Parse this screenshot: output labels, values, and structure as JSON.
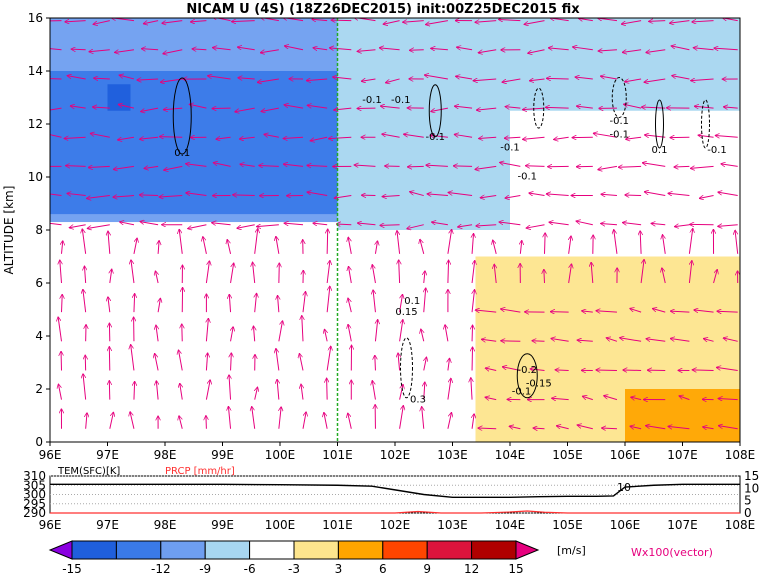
{
  "title": "NICAM U (4S) (18Z26DEC2015) init:00Z25DEC2015 fix",
  "main_panel": {
    "ylabel": "ALTITUDE [km]",
    "ylim": [
      0,
      16
    ],
    "yticks": [
      "0",
      "2",
      "4",
      "6",
      "8",
      "10",
      "12",
      "14",
      "16"
    ],
    "xlim": [
      96,
      108
    ],
    "xticks": [
      "96E",
      "97E",
      "98E",
      "99E",
      "100E",
      "101E",
      "102E",
      "103E",
      "104E",
      "105E",
      "106E",
      "107E",
      "108E"
    ],
    "reference_line_lon": 101,
    "reference_line_color": "#22aa22"
  },
  "contour_labels": [
    {
      "text": "0.1",
      "lon": 98.3,
      "alt": 10.8
    },
    {
      "text": "-0.1",
      "lon": 101.6,
      "alt": 12.8
    },
    {
      "text": "-0.1",
      "lon": 102.1,
      "alt": 12.8
    },
    {
      "text": "-0.1",
      "lon": 102.7,
      "alt": 11.4
    },
    {
      "text": "-0.1",
      "lon": 104.0,
      "alt": 11.0
    },
    {
      "text": "-0.1",
      "lon": 104.3,
      "alt": 9.9
    },
    {
      "text": "-0.1",
      "lon": 105.9,
      "alt": 12.0
    },
    {
      "text": "-0.1",
      "lon": 105.9,
      "alt": 11.5
    },
    {
      "text": "0.1",
      "lon": 106.6,
      "alt": 10.9
    },
    {
      "text": "-0.1",
      "lon": 107.6,
      "alt": 10.9
    },
    {
      "text": "0.1",
      "lon": 102.3,
      "alt": 5.2
    },
    {
      "text": "0.15",
      "lon": 102.2,
      "alt": 4.8
    },
    {
      "text": "0.3",
      "lon": 102.4,
      "alt": 1.5
    },
    {
      "text": "-0.2",
      "lon": 104.3,
      "alt": 2.6
    },
    {
      "text": "-0.15",
      "lon": 104.5,
      "alt": 2.1
    },
    {
      "text": "-0.1",
      "lon": 104.2,
      "alt": 1.8
    }
  ],
  "colorbar": {
    "levels": [
      -15,
      -12,
      -9,
      -6,
      -3,
      3,
      6,
      9,
      12,
      15
    ],
    "tick_labels": [
      "-15",
      "-12",
      "-9",
      "-6",
      "-3",
      "3",
      "6",
      "9",
      "12",
      "15"
    ],
    "colors": [
      "#8a00e0",
      "#1f5fdc",
      "#3a7ae8",
      "#6e9ef0",
      "#a7d6f0",
      "#ffffff",
      "#fde58d",
      "#ffa500",
      "#ff4500",
      "#dc143c",
      "#b00000",
      "#e6007e"
    ],
    "unit_label": "[m/s]",
    "vector_label": "Wx100(vector)"
  },
  "bottom_panel": {
    "tem_label": "TEM(SFC)[K]",
    "prcp_label": "PRCP [mm/hr]",
    "left_ticks": [
      "310",
      "305",
      "300",
      "295",
      "290"
    ],
    "left_lim": [
      290,
      310
    ],
    "right_ticks": [
      "15",
      "10",
      "5",
      "0"
    ],
    "right_lim": [
      0,
      15
    ],
    "xticks": [
      "96E",
      "97E",
      "98E",
      "99E",
      "100E",
      "101E",
      "102E",
      "103E",
      "104E",
      "105E",
      "106E",
      "107E",
      "108E"
    ],
    "temperature_line_label": "10",
    "temperature_color": "#000000",
    "precip_color": "#ff3030"
  },
  "chart_data": [
    {
      "type": "heatmap",
      "title": "NICAM U (4S) (18Z26DEC2015) init:00Z25DEC2015 fix",
      "xlabel": "",
      "ylabel": "ALTITUDE [km]",
      "xlim": [
        96,
        108
      ],
      "ylim": [
        0,
        16
      ],
      "grid": true,
      "fields": "zonal wind U shaded [m/s], vertical wind contours, wind vectors Wx100",
      "shading_regions": [
        {
          "lon": [
            96,
            101
          ],
          "alt": [
            8.3,
            16
          ],
          "u_range": [
            -9,
            -3
          ]
        },
        {
          "lon": [
            96,
            101
          ],
          "alt": [
            8.6,
            14
          ],
          "u_range": [
            -12,
            -9
          ]
        },
        {
          "lon": [
            97.0,
            97.4
          ],
          "alt": [
            12.5,
            13.5
          ],
          "u_range": [
            -15,
            -12
          ]
        },
        {
          "lon": [
            101,
            104
          ],
          "alt": [
            8.0,
            16
          ],
          "u_range": [
            -6,
            -3
          ]
        },
        {
          "lon": [
            104,
            108
          ],
          "alt": [
            12.5,
            16
          ],
          "u_range": [
            -6,
            -3
          ]
        },
        {
          "lon": [
            103.4,
            108
          ],
          "alt": [
            0,
            7
          ],
          "u_range": [
            3,
            6
          ]
        },
        {
          "lon": [
            106,
            108
          ],
          "alt": [
            0,
            2
          ],
          "u_range": [
            6,
            9
          ]
        }
      ]
    },
    {
      "type": "line",
      "title": "",
      "xlabel": "",
      "ylabel": "TEM(SFC)[K]",
      "xlim": [
        96,
        108
      ],
      "ylim": [
        290,
        310
      ],
      "series": [
        {
          "name": "TEM(SFC)[K]",
          "x": [
            96,
            97,
            98,
            99,
            100,
            101,
            101.6,
            102,
            102.5,
            103,
            103.5,
            104,
            104.5,
            105,
            105.5,
            105.8,
            106,
            106.5,
            107,
            107.5,
            108
          ],
          "values": [
            305.5,
            305.5,
            305.5,
            305.5,
            305.3,
            305.0,
            304.5,
            302.5,
            300.0,
            298.5,
            298.5,
            298.5,
            298.8,
            299.0,
            299.0,
            299.2,
            304.0,
            305.0,
            305.5,
            305.5,
            305.5
          ]
        },
        {
          "name": "PRCP [mm/hr]",
          "x": [
            96,
            101,
            102,
            102.4,
            102.8,
            103.5,
            104,
            104.3,
            104.6,
            105,
            108
          ],
          "values": [
            0,
            0,
            0,
            0.6,
            0,
            0,
            0.4,
            0.8,
            0.3,
            0,
            0
          ]
        }
      ]
    }
  ]
}
